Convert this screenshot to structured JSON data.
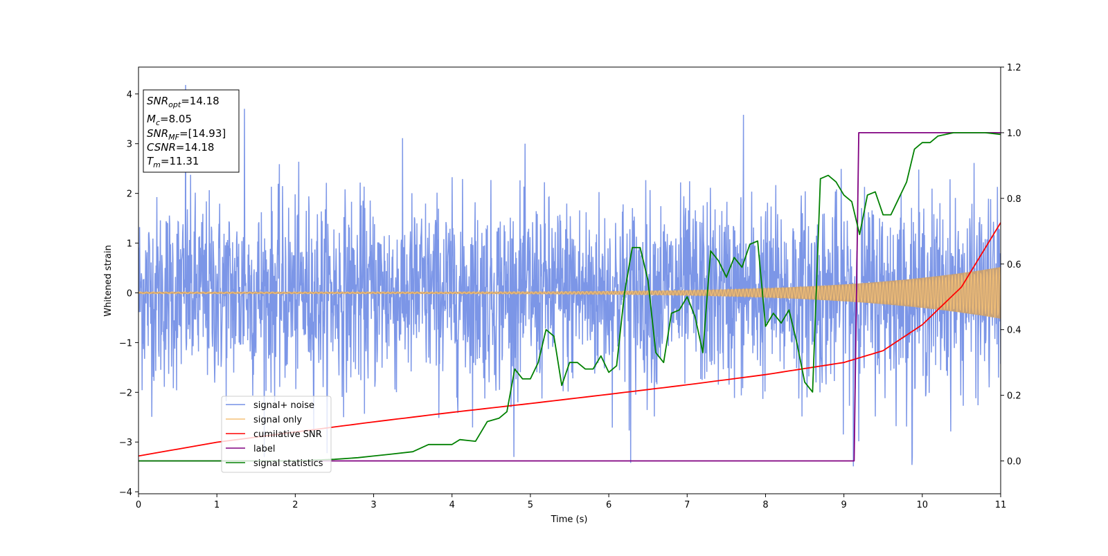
{
  "chart_data": {
    "type": "line",
    "xlabel": "Time (s)",
    "ylabel": "Whitened strain",
    "xlim": [
      0,
      11
    ],
    "ylim_left": [
      -4.04,
      4.54
    ],
    "ylim_right": [
      -0.1,
      1.2
    ],
    "x_ticks": [
      0,
      1,
      2,
      3,
      4,
      5,
      6,
      7,
      8,
      9,
      10,
      11
    ],
    "y_ticks_left": [
      -4,
      -3,
      -2,
      -1,
      0,
      1,
      2,
      3,
      4
    ],
    "y_ticks_right": [
      0.0,
      0.2,
      0.4,
      0.6,
      0.8,
      1.0,
      1.2
    ],
    "grid": false,
    "legend_position": "lower-left",
    "info_box": {
      "snr_opt": {
        "var": "SNR",
        "sub": "opt",
        "value": "=14.18"
      },
      "mc": {
        "var": "M",
        "sub": "c",
        "value": "=8.05"
      },
      "snr_mf": {
        "var": "SNR",
        "sub": "MF",
        "value": "=[14.93]"
      },
      "csnr": {
        "var": "CSNR",
        "value": "=14.18"
      },
      "tm": {
        "var": "T",
        "sub": "m",
        "value": "=11.31"
      }
    },
    "series": [
      {
        "name": "signal+ noise",
        "axis": "left",
        "color": "#7590e6",
        "description_values": {
          "noise_sigma": 1.0,
          "peaks": [
            [
              0.6,
              4.18
            ],
            [
              1.35,
              3.7
            ],
            [
              7.72,
              3.58
            ],
            [
              6.28,
              -3.42
            ],
            [
              9.12,
              -3.49
            ],
            [
              9.87,
              -3.46
            ]
          ]
        }
      },
      {
        "name": "signal only",
        "axis": "left",
        "color": "#f5c177",
        "amplitude_start": 0.02,
        "amplitude_end": 0.52
      },
      {
        "name": "cumilative SNR",
        "axis": "right",
        "color": "#ff0000",
        "x": [
          0,
          1,
          2,
          3,
          4,
          5,
          6,
          7,
          8,
          9,
          9.5,
          10,
          10.5,
          11
        ],
        "y": [
          0.015,
          0.057,
          0.088,
          0.119,
          0.148,
          0.175,
          0.203,
          0.232,
          0.263,
          0.3,
          0.336,
          0.415,
          0.53,
          0.726
        ]
      },
      {
        "name": "label",
        "axis": "right",
        "color": "#800080",
        "x": [
          0,
          9.13,
          9.19,
          11
        ],
        "y": [
          0.0,
          0.0,
          1.0,
          1.0
        ]
      },
      {
        "name": "signal statistics",
        "axis": "right",
        "color": "#008000",
        "x": [
          0,
          1,
          2,
          2.5,
          2.8,
          3.0,
          3.2,
          3.5,
          3.7,
          3.9,
          4.0,
          4.1,
          4.3,
          4.45,
          4.6,
          4.7,
          4.8,
          4.9,
          5.0,
          5.1,
          5.2,
          5.3,
          5.4,
          5.5,
          5.6,
          5.7,
          5.8,
          5.9,
          6.0,
          6.1,
          6.2,
          6.3,
          6.4,
          6.5,
          6.6,
          6.7,
          6.8,
          6.9,
          7.0,
          7.1,
          7.2,
          7.3,
          7.4,
          7.5,
          7.6,
          7.7,
          7.8,
          7.9,
          8.0,
          8.1,
          8.2,
          8.3,
          8.4,
          8.5,
          8.6,
          8.7,
          8.8,
          8.9,
          9.0,
          9.1,
          9.2,
          9.3,
          9.4,
          9.5,
          9.6,
          9.7,
          9.8,
          9.9,
          10.0,
          10.1,
          10.2,
          10.4,
          10.6,
          10.8,
          11
        ],
        "y": [
          0.0,
          0.0,
          0.0,
          0.005,
          0.01,
          0.015,
          0.02,
          0.028,
          0.05,
          0.05,
          0.05,
          0.065,
          0.06,
          0.12,
          0.13,
          0.15,
          0.28,
          0.25,
          0.25,
          0.3,
          0.4,
          0.38,
          0.23,
          0.3,
          0.3,
          0.28,
          0.28,
          0.32,
          0.27,
          0.29,
          0.51,
          0.65,
          0.65,
          0.55,
          0.33,
          0.3,
          0.45,
          0.46,
          0.5,
          0.44,
          0.33,
          0.64,
          0.61,
          0.56,
          0.62,
          0.59,
          0.66,
          0.67,
          0.41,
          0.45,
          0.42,
          0.46,
          0.36,
          0.24,
          0.21,
          0.86,
          0.87,
          0.85,
          0.81,
          0.79,
          0.69,
          0.81,
          0.82,
          0.75,
          0.75,
          0.8,
          0.85,
          0.95,
          0.97,
          0.97,
          0.99,
          1.0,
          1.0,
          1.0,
          0.995
        ]
      }
    ]
  }
}
